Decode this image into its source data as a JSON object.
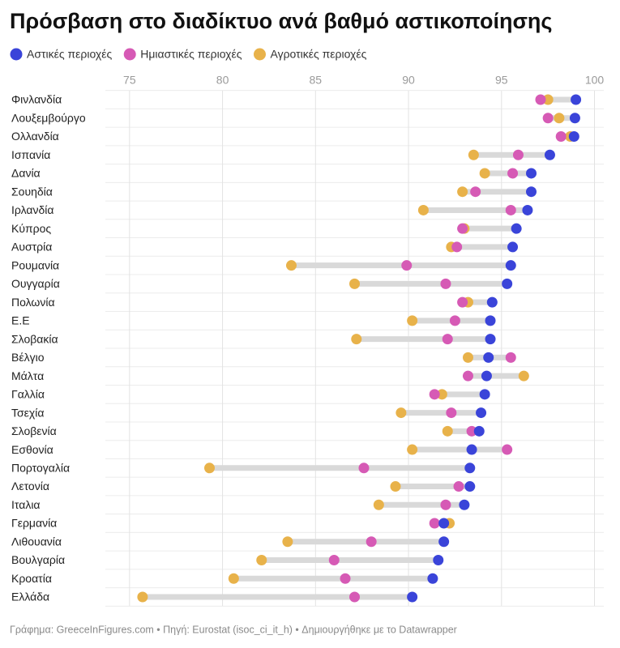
{
  "chart_data": {
    "type": "dot",
    "title": "Πρόσβαση στο διαδίκτυο ανά βαθμό αστικοποίησης",
    "categories": [
      "Φινλανδία",
      "Λουξεμβούργο",
      "Ολλανδία",
      "Ισπανία",
      "Δανία",
      "Σουηδία",
      "Ιρλανδία",
      "Κύπρος",
      "Αυστρία",
      "Ρουμανία",
      "Ουγγαρία",
      "Πολωνία",
      "Ε.Ε",
      "Σλοβακία",
      "Βέλγιο",
      "Μάλτα",
      "Γαλλία",
      "Τσεχία",
      "Σλοβενία",
      "Εσθονία",
      "Πορτογαλία",
      "Λετονία",
      "Ιταλια",
      "Γερμανία",
      "Λιθουανία",
      "Βουλγαρία",
      "Κροατία",
      "Ελλάδα"
    ],
    "series": [
      {
        "name": "Αστικές περιοχές",
        "color": "#3a44d9",
        "values": [
          99.0,
          98.95,
          98.9,
          97.6,
          96.6,
          96.6,
          96.4,
          95.8,
          95.6,
          95.5,
          95.3,
          94.5,
          94.4,
          94.4,
          94.3,
          94.2,
          94.1,
          93.9,
          93.8,
          93.4,
          93.3,
          93.3,
          93.0,
          91.9,
          91.9,
          91.6,
          91.3,
          90.2
        ]
      },
      {
        "name": "Ημιαστικές περιοχές",
        "color": "#d65ab5",
        "values": [
          97.1,
          97.5,
          98.2,
          95.9,
          95.6,
          93.6,
          95.5,
          92.9,
          92.6,
          89.9,
          92.0,
          92.9,
          92.5,
          92.1,
          95.5,
          93.2,
          91.4,
          92.3,
          93.4,
          95.3,
          87.6,
          92.7,
          92.0,
          91.4,
          88.0,
          86.0,
          86.6,
          87.1
        ]
      },
      {
        "name": "Αγροτικές περιοχές",
        "color": "#e8b24a",
        "values": [
          97.5,
          98.1,
          98.7,
          93.5,
          94.1,
          92.9,
          90.8,
          93.0,
          92.3,
          83.7,
          87.1,
          93.2,
          90.2,
          87.2,
          93.2,
          96.2,
          91.8,
          89.6,
          92.1,
          90.2,
          79.3,
          89.3,
          88.4,
          92.2,
          83.5,
          82.1,
          80.6,
          75.7
        ]
      }
    ],
    "xlim": [
      73.7,
      100.5
    ],
    "xticks": [
      75,
      80,
      85,
      90,
      95,
      100
    ],
    "grid": true,
    "source": "Γράφημα: GreeceInFigures.com • Πηγή: Eurostat (isoc_ci_it_h) • Δημιουργήθηκε με το Datawrapper"
  }
}
